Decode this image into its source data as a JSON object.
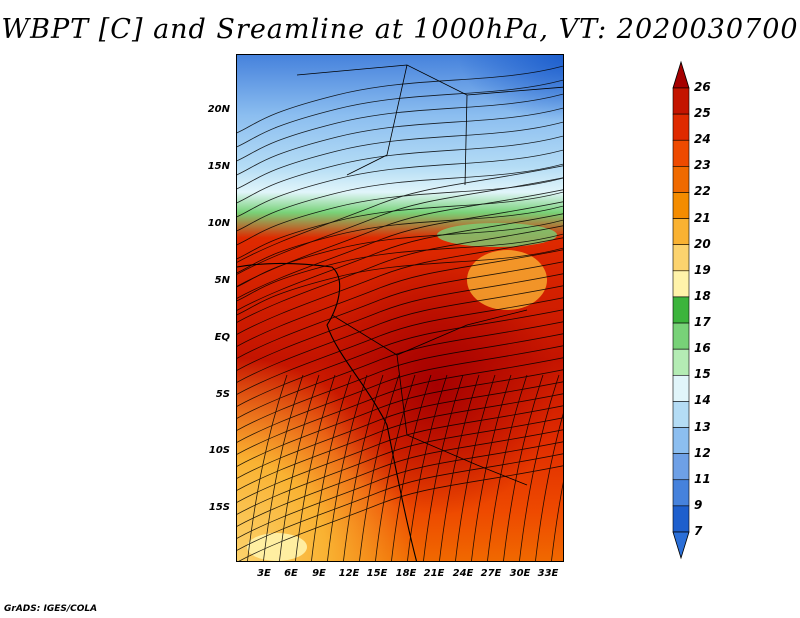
{
  "title": "WBPT [C] and Sreamline at 1000hPa, VT: 2020030700",
  "credit": "GrADS: IGES/COLA",
  "map": {
    "variable": "Wet-bulb potential temperature",
    "units": "C",
    "level": "1000hPa",
    "valid_time": "2020030700",
    "region": "Central Africa",
    "lat_labels": [
      "20N",
      "15N",
      "10N",
      "5N",
      "EQ",
      "5S",
      "10S",
      "15S"
    ],
    "lon_labels": [
      "3E",
      "6E",
      "9E",
      "12E",
      "15E",
      "18E",
      "21E",
      "24E",
      "27E",
      "30E",
      "33E"
    ]
  },
  "colorbar": {
    "labels": [
      "26",
      "25",
      "24",
      "23",
      "22",
      "21",
      "20",
      "19",
      "18",
      "17",
      "16",
      "15",
      "14",
      "13",
      "12",
      "11",
      "9",
      "7"
    ],
    "colors": [
      "#a50000",
      "#c41400",
      "#df2a00",
      "#ee4a00",
      "#f06a00",
      "#f48c00",
      "#f9b232",
      "#fcd36e",
      "#fff3aa",
      "#3cb43c",
      "#78d278",
      "#b4ecb4",
      "#e1f5fa",
      "#b4dcf5",
      "#8cbef0",
      "#6ea0e6",
      "#4682dc",
      "#1e5fcd",
      "#2b6fd8"
    ]
  }
}
